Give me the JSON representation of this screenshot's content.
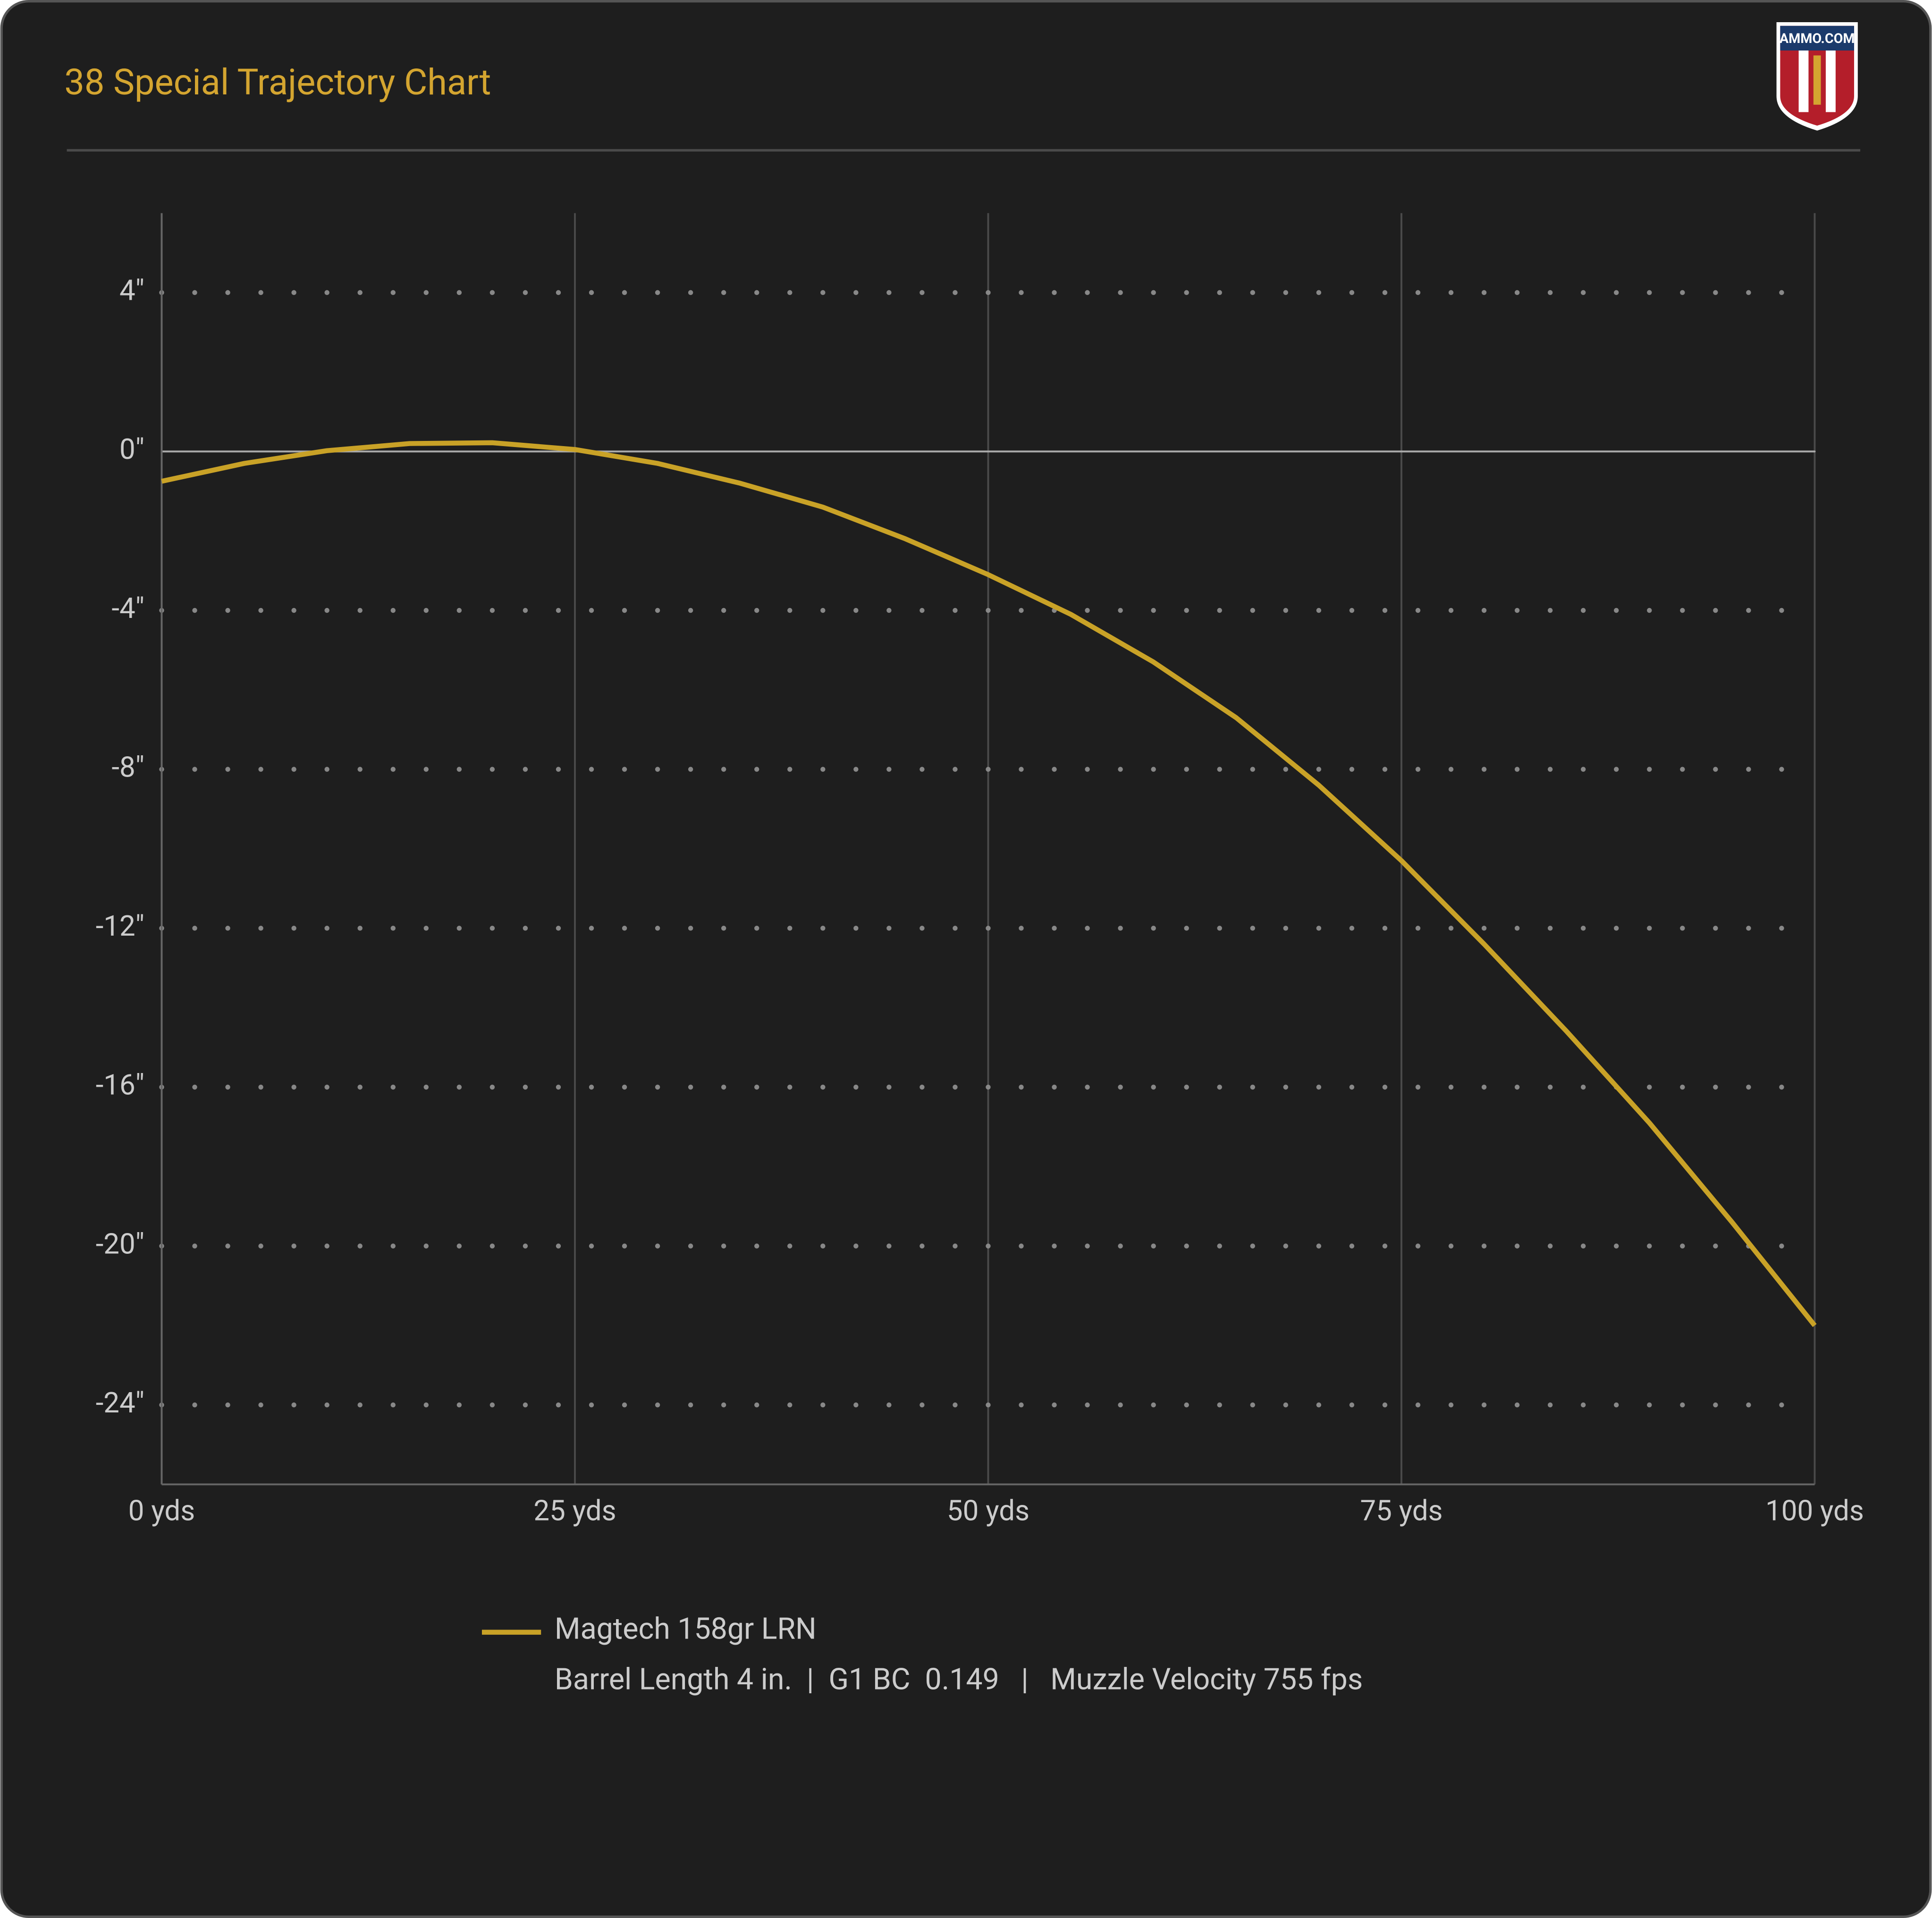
{
  "chart_data": {
    "type": "line",
    "title": "38 Special Trajectory Chart",
    "logo_text": "AMMO.COM",
    "x": [
      0,
      5,
      10,
      15,
      20,
      25,
      30,
      35,
      40,
      45,
      50,
      55,
      60,
      65,
      70,
      75,
      80,
      85,
      90,
      95,
      100
    ],
    "series": [
      {
        "name": "Magtech 158gr LRN",
        "color": "#c9a227",
        "values": [
          -0.75,
          -0.3,
          0.02,
          0.2,
          0.22,
          0.05,
          -0.3,
          -0.8,
          -1.4,
          -2.2,
          -3.1,
          -4.1,
          -5.3,
          -6.7,
          -8.4,
          -10.3,
          -12.4,
          -14.6,
          -16.9,
          -19.4,
          -22.0
        ]
      }
    ],
    "subtitle": "Barrel Length 4 in.  |  G1 BC  0.149   |   Muzzle Velocity 755 fps",
    "xlim": [
      0,
      100
    ],
    "xticks": [
      {
        "value": 0,
        "label": "0 yds"
      },
      {
        "value": 25,
        "label": "25 yds"
      },
      {
        "value": 50,
        "label": "50 yds"
      },
      {
        "value": 75,
        "label": "75 yds"
      },
      {
        "value": 100,
        "label": "100 yds"
      }
    ],
    "ylim": [
      -26,
      6
    ],
    "yticks": [
      {
        "value": 4,
        "label": "4\""
      },
      {
        "value": 0,
        "label": "0\""
      },
      {
        "value": -4,
        "label": "-4\""
      },
      {
        "value": -8,
        "label": "-8\""
      },
      {
        "value": -12,
        "label": "-12\""
      },
      {
        "value": -16,
        "label": "-16\""
      },
      {
        "value": -20,
        "label": "-20\""
      },
      {
        "value": -24,
        "label": "-24\""
      }
    ],
    "grid": true
  }
}
